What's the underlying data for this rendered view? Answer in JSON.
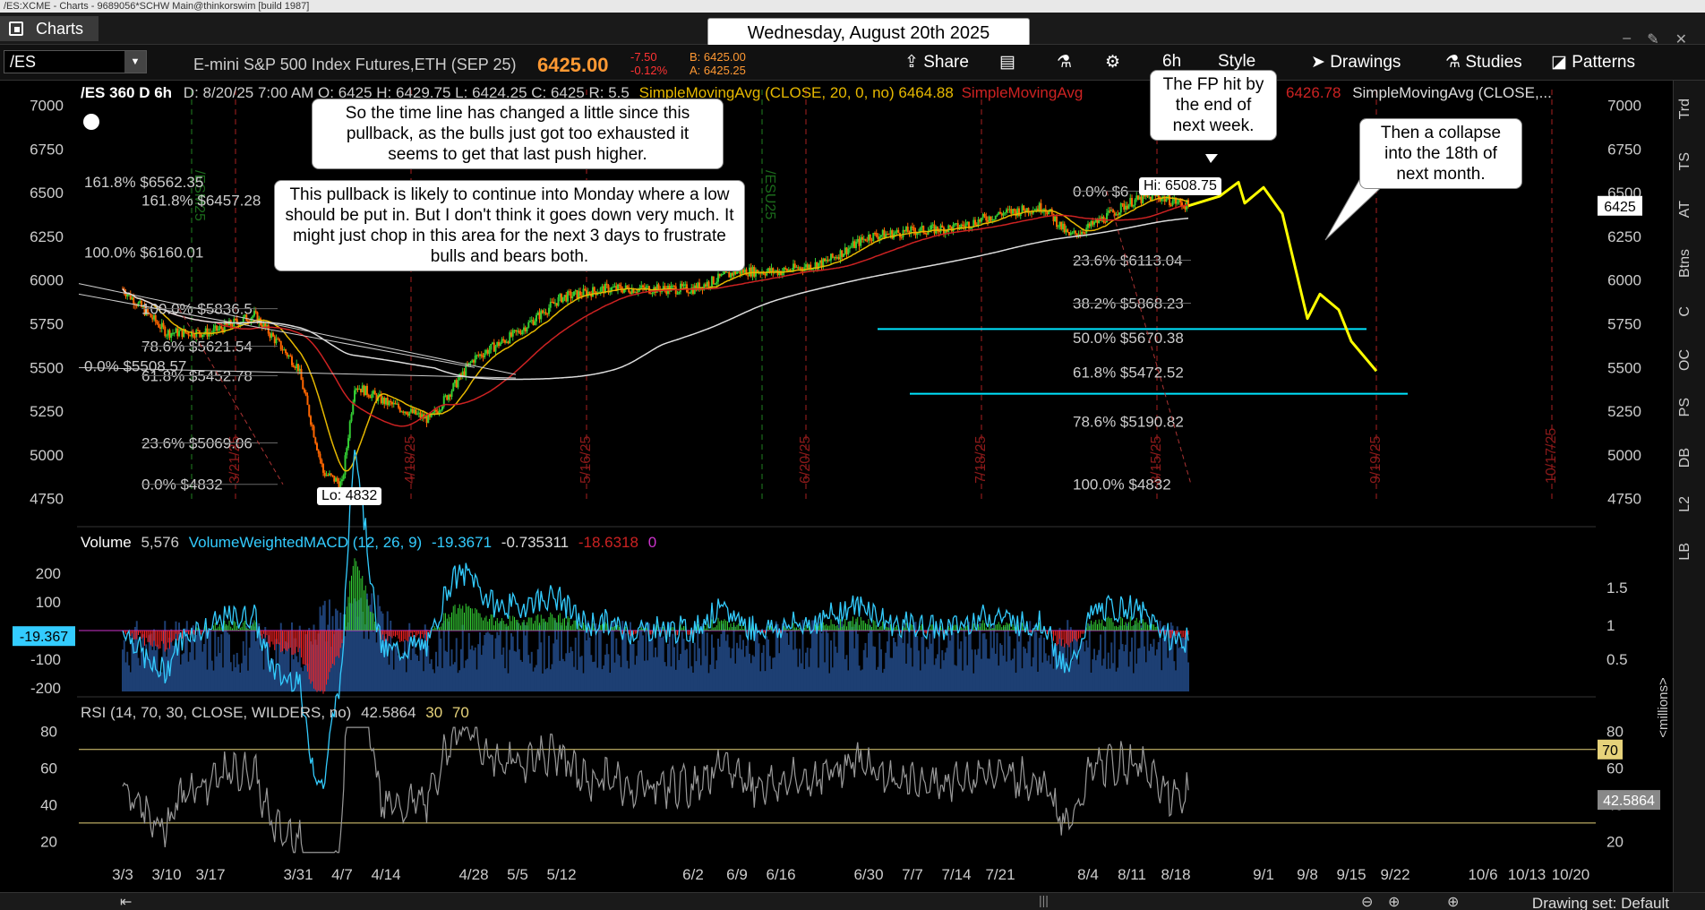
{
  "window": {
    "title": "/ES:XCME - Charts - 9689056*SCHW Main@thinkorswim [build 1987]",
    "tab_label": "Charts",
    "date_banner": "Wednesday, August 20th 2025"
  },
  "toolbar": {
    "symbol": "/ES",
    "description": "E-mini S&P 500 Index Futures,ETH (SEP 25)",
    "last_price": "6425.00",
    "change": "-7.50",
    "change_pct": "-0.12%",
    "bid": "B: 6425.00",
    "ask": "A: 6425.25",
    "share_label": "Share",
    "timeframe": "6h",
    "style_label": "Style",
    "drawings_label": "Drawings",
    "studies_label": "Studies",
    "patterns_label": "Patterns"
  },
  "header": {
    "chart_id": "/ES 360 D 6h",
    "ohlc": "D: 8/20/25 7:00 AM  O: 6425  H: 6429.75  L: 6424.25  C: 6425  R: 5.5",
    "sma20_label": "SimpleMovingAvg (CLOSE, 20, 0, no)",
    "sma20_value": "6464.88",
    "sma_red_label": "SimpleMovingAvg",
    "sma_red_value": "6426.78",
    "sma_white_label": "SimpleMovingAvg (CLOSE,..."
  },
  "chart_data": [
    {
      "type": "line",
      "x_dates": [
        "3/3",
        "3/10",
        "3/17",
        "3/31",
        "4/7",
        "4/14",
        "4/28",
        "5/5",
        "5/12",
        "6/2",
        "6/9",
        "6/16",
        "6/30",
        "7/7",
        "7/14",
        "7/21",
        "8/4",
        "8/11",
        "8/18",
        "9/1",
        "9/8",
        "9/15",
        "9/22",
        "10/6",
        "10/13",
        "10/20"
      ],
      "y_ticks": [
        7000,
        6750,
        6500,
        6250,
        6000,
        5750,
        5500,
        5250,
        5000,
        4750
      ],
      "ylim": [
        4600,
        7100
      ],
      "last_value": "6425",
      "series_path": [
        [
          "3/3",
          5950
        ],
        [
          "3/10",
          5700
        ],
        [
          "3/17",
          5700
        ],
        [
          "3/24",
          5800
        ],
        [
          "3/31",
          5500
        ],
        [
          "4/4",
          4900
        ],
        [
          "4/7",
          4832
        ],
        [
          "4/9",
          5400
        ],
        [
          "4/14",
          5300
        ],
        [
          "4/21",
          5200
        ],
        [
          "4/28",
          5550
        ],
        [
          "5/5",
          5700
        ],
        [
          "5/12",
          5900
        ],
        [
          "5/19",
          5950
        ],
        [
          "6/2",
          5950
        ],
        [
          "6/9",
          6050
        ],
        [
          "6/16",
          6050
        ],
        [
          "6/23",
          6100
        ],
        [
          "6/30",
          6250
        ],
        [
          "7/7",
          6280
        ],
        [
          "7/14",
          6300
        ],
        [
          "7/21",
          6380
        ],
        [
          "7/28",
          6420
        ],
        [
          "8/1",
          6250
        ],
        [
          "8/4",
          6300
        ],
        [
          "8/11",
          6450
        ],
        [
          "8/15",
          6480
        ],
        [
          "8/20",
          6425
        ]
      ],
      "projection_path": [
        [
          "8/20",
          6425
        ],
        [
          "8/25",
          6480
        ],
        [
          "8/28",
          6560
        ],
        [
          "8/29",
          6440
        ],
        [
          "9/1",
          6530
        ],
        [
          "9/4",
          6380
        ],
        [
          "9/8",
          5780
        ],
        [
          "9/10",
          5920
        ],
        [
          "9/13",
          5830
        ],
        [
          "9/15",
          5650
        ],
        [
          "9/19",
          5480
        ]
      ],
      "high_label": "Hi: 6508.75",
      "low_label": "Lo: 4832",
      "fib_left": [
        {
          "pct": "161.8%",
          "value": "$6562.35"
        },
        {
          "pct": "161.8%",
          "value": "$6457.28"
        },
        {
          "pct": "100.0%",
          "value": "$6160.01"
        },
        {
          "pct": "100.0%",
          "value": "$5836.5"
        },
        {
          "pct": "78.6%",
          "value": "$5621.54"
        },
        {
          "pct": "0.0%",
          "value": "$5508.57"
        },
        {
          "pct": "61.8%",
          "value": "$5452.78"
        },
        {
          "pct": "23.6%",
          "value": "$5069.06"
        },
        {
          "pct": "0.0%",
          "value": "$4832"
        }
      ],
      "fib_right": [
        {
          "pct": "0.0%",
          "value": "$6"
        },
        {
          "pct": "23.6%",
          "value": "$6113.04"
        },
        {
          "pct": "38.2%",
          "value": "$5868.23"
        },
        {
          "pct": "50.0%",
          "value": "$5670.38"
        },
        {
          "pct": "61.8%",
          "value": "$5472.52"
        },
        {
          "pct": "78.6%",
          "value": "$5190.82"
        },
        {
          "pct": "100.0%",
          "value": "$4832"
        }
      ],
      "expiry_labels": [
        "/ESM25",
        "/ESU25",
        "3/21/25",
        "4/18/25",
        "5/16/25",
        "6/20/25",
        "7/18/25",
        "8/15/25",
        "9/19/25",
        "10/17/25"
      ],
      "annotations": [
        "So the time line has changed a little since this pullback, as the bulls just got too exhausted it seems to get that last push higher.",
        "This pullback is likely to continue into Monday where a low should be put in.  But I don't think it goes down very much.  It might just chop in this area for the next 3 days to frustrate bulls and bears both.",
        "The FP hit by the end of next week.",
        "Then a collapse into the 18th of next month."
      ]
    },
    {
      "type": "bar",
      "title": "Volume",
      "volume_value": "5,576",
      "macd_label": "VolumeWeightedMACD (12, 26, 9)",
      "macd_values": [
        "-19.3671",
        "-0.735311",
        "-18.6318",
        "0"
      ],
      "current_label": "-19.367",
      "y_ticks_left": [
        200,
        100,
        -100,
        -200
      ],
      "y_ticks_right": [
        "1.5",
        "1",
        "0.5"
      ],
      "right_axis_label": "<millions>"
    },
    {
      "type": "line",
      "title": "RSI (14, 70, 30, CLOSE, WILDERS, no)",
      "current": "42.5864",
      "levels": [
        "30",
        "70"
      ],
      "y_ticks": [
        80,
        60,
        40,
        20
      ],
      "ylim": [
        10,
        85
      ]
    }
  ],
  "right_tabs": [
    "Trd",
    "TS",
    "AT",
    "Btns",
    "C",
    "OC",
    "PS",
    "DB",
    "L2",
    "LB"
  ],
  "status": {
    "drawing_set": "Drawing set: Default"
  },
  "colors": {
    "up_candle": "#33cc33",
    "down_candle": "#ff6600",
    "sma20": "#e6b800",
    "sma_red": "#cc2222",
    "sma_white": "#dddddd",
    "projection": "#ffff00",
    "support": "#00e5ff",
    "macd_line": "#33ccff",
    "rsi_line": "#999999"
  }
}
